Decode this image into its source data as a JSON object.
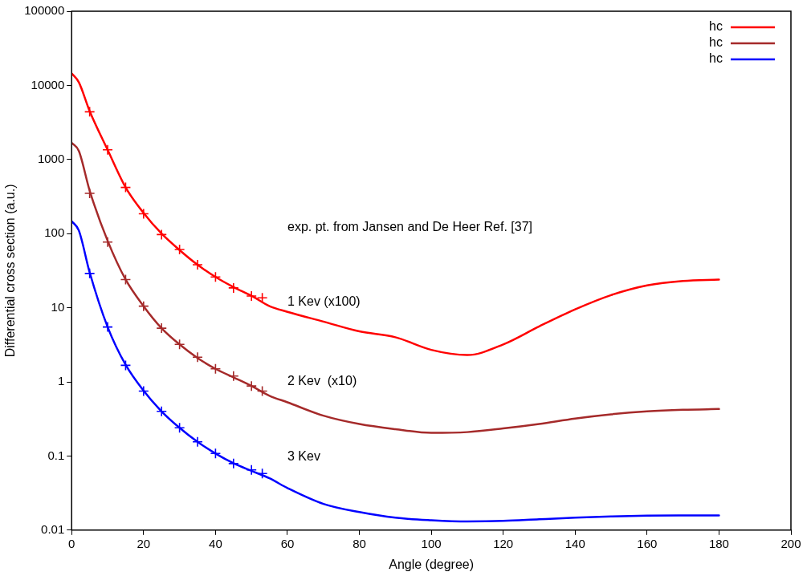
{
  "chart_data": {
    "type": "line",
    "xlabel": "Angle (degree)",
    "ylabel": "Differential cross section (a.u.)",
    "xlim": [
      0,
      200
    ],
    "xticks": [
      0,
      20,
      40,
      60,
      80,
      100,
      120,
      140,
      160,
      180,
      200
    ],
    "ylim": [
      0.01,
      100000
    ],
    "yticks": [
      0.01,
      0.1,
      1,
      10,
      100,
      1000,
      10000,
      100000
    ],
    "log": "y",
    "grid": false,
    "legend": "top right",
    "series": [
      {
        "name": "hc",
        "type": "line",
        "marker": "none",
        "color": "#ff0000",
        "x": [
          0,
          2,
          5,
          10,
          15,
          20,
          25,
          30,
          35,
          40,
          45,
          50,
          55,
          60,
          70,
          80,
          90,
          100,
          110,
          120,
          130,
          140,
          150,
          160,
          170,
          180
        ],
        "values": [
          14500,
          11000,
          4500,
          1350,
          420,
          190,
          100,
          60,
          38,
          26,
          19,
          14.5,
          10.5,
          8.8,
          6.5,
          4.8,
          4.0,
          2.7,
          2.3,
          3.2,
          5.6,
          9.5,
          14.8,
          20,
          23,
          24
        ]
      },
      {
        "name": "hc",
        "type": "line",
        "marker": "none",
        "color": "#a52a2a",
        "x": [
          0,
          2,
          5,
          10,
          15,
          20,
          25,
          30,
          35,
          40,
          45,
          50,
          55,
          60,
          70,
          80,
          90,
          100,
          110,
          120,
          130,
          140,
          150,
          160,
          170,
          180
        ],
        "values": [
          1680,
          1300,
          380,
          80,
          24,
          10.5,
          5.3,
          3.2,
          2.1,
          1.5,
          1.15,
          0.88,
          0.65,
          0.53,
          0.35,
          0.27,
          0.23,
          0.205,
          0.21,
          0.235,
          0.27,
          0.32,
          0.365,
          0.4,
          0.42,
          0.43
        ]
      },
      {
        "name": "hc",
        "type": "line",
        "marker": "none",
        "color": "#0000ff",
        "x": [
          0,
          2,
          5,
          10,
          15,
          20,
          25,
          30,
          35,
          40,
          45,
          50,
          55,
          60,
          70,
          80,
          90,
          100,
          110,
          120,
          130,
          140,
          150,
          160,
          170,
          180
        ],
        "values": [
          147,
          110,
          30,
          5.5,
          1.7,
          0.76,
          0.4,
          0.24,
          0.155,
          0.108,
          0.08,
          0.063,
          0.05,
          0.037,
          0.0226,
          0.0175,
          0.0147,
          0.0136,
          0.0131,
          0.0133,
          0.014,
          0.0147,
          0.0153,
          0.0157,
          0.0158,
          0.0158
        ]
      },
      {
        "type": "scatter",
        "marker": "cross",
        "color": "#ff0000",
        "x": [
          5,
          10,
          15,
          20,
          25,
          30,
          35,
          40,
          45,
          50,
          53
        ],
        "values": [
          4400,
          1350,
          420,
          185,
          97,
          61,
          38,
          26,
          18.5,
          14.4,
          13.6
        ]
      },
      {
        "type": "scatter",
        "marker": "cross",
        "color": "#a52a2a",
        "x": [
          5,
          10,
          15,
          20,
          25,
          30,
          35,
          40,
          45,
          50,
          53
        ],
        "values": [
          350,
          77,
          24,
          10.5,
          5.3,
          3.2,
          2.15,
          1.5,
          1.2,
          0.88,
          0.75
        ]
      },
      {
        "type": "scatter",
        "marker": "cross",
        "color": "#0000ff",
        "x": [
          5,
          10,
          15,
          20,
          25,
          30,
          35,
          40,
          45,
          50,
          53
        ],
        "values": [
          29,
          5.5,
          1.67,
          0.75,
          0.4,
          0.24,
          0.155,
          0.108,
          0.079,
          0.065,
          0.058
        ]
      }
    ],
    "annotations": [
      "exp. pt. from Jansen and De Heer Ref. [37]",
      "1 Kev (x100)",
      "2 Kev  (x10)",
      "3 Kev"
    ]
  }
}
